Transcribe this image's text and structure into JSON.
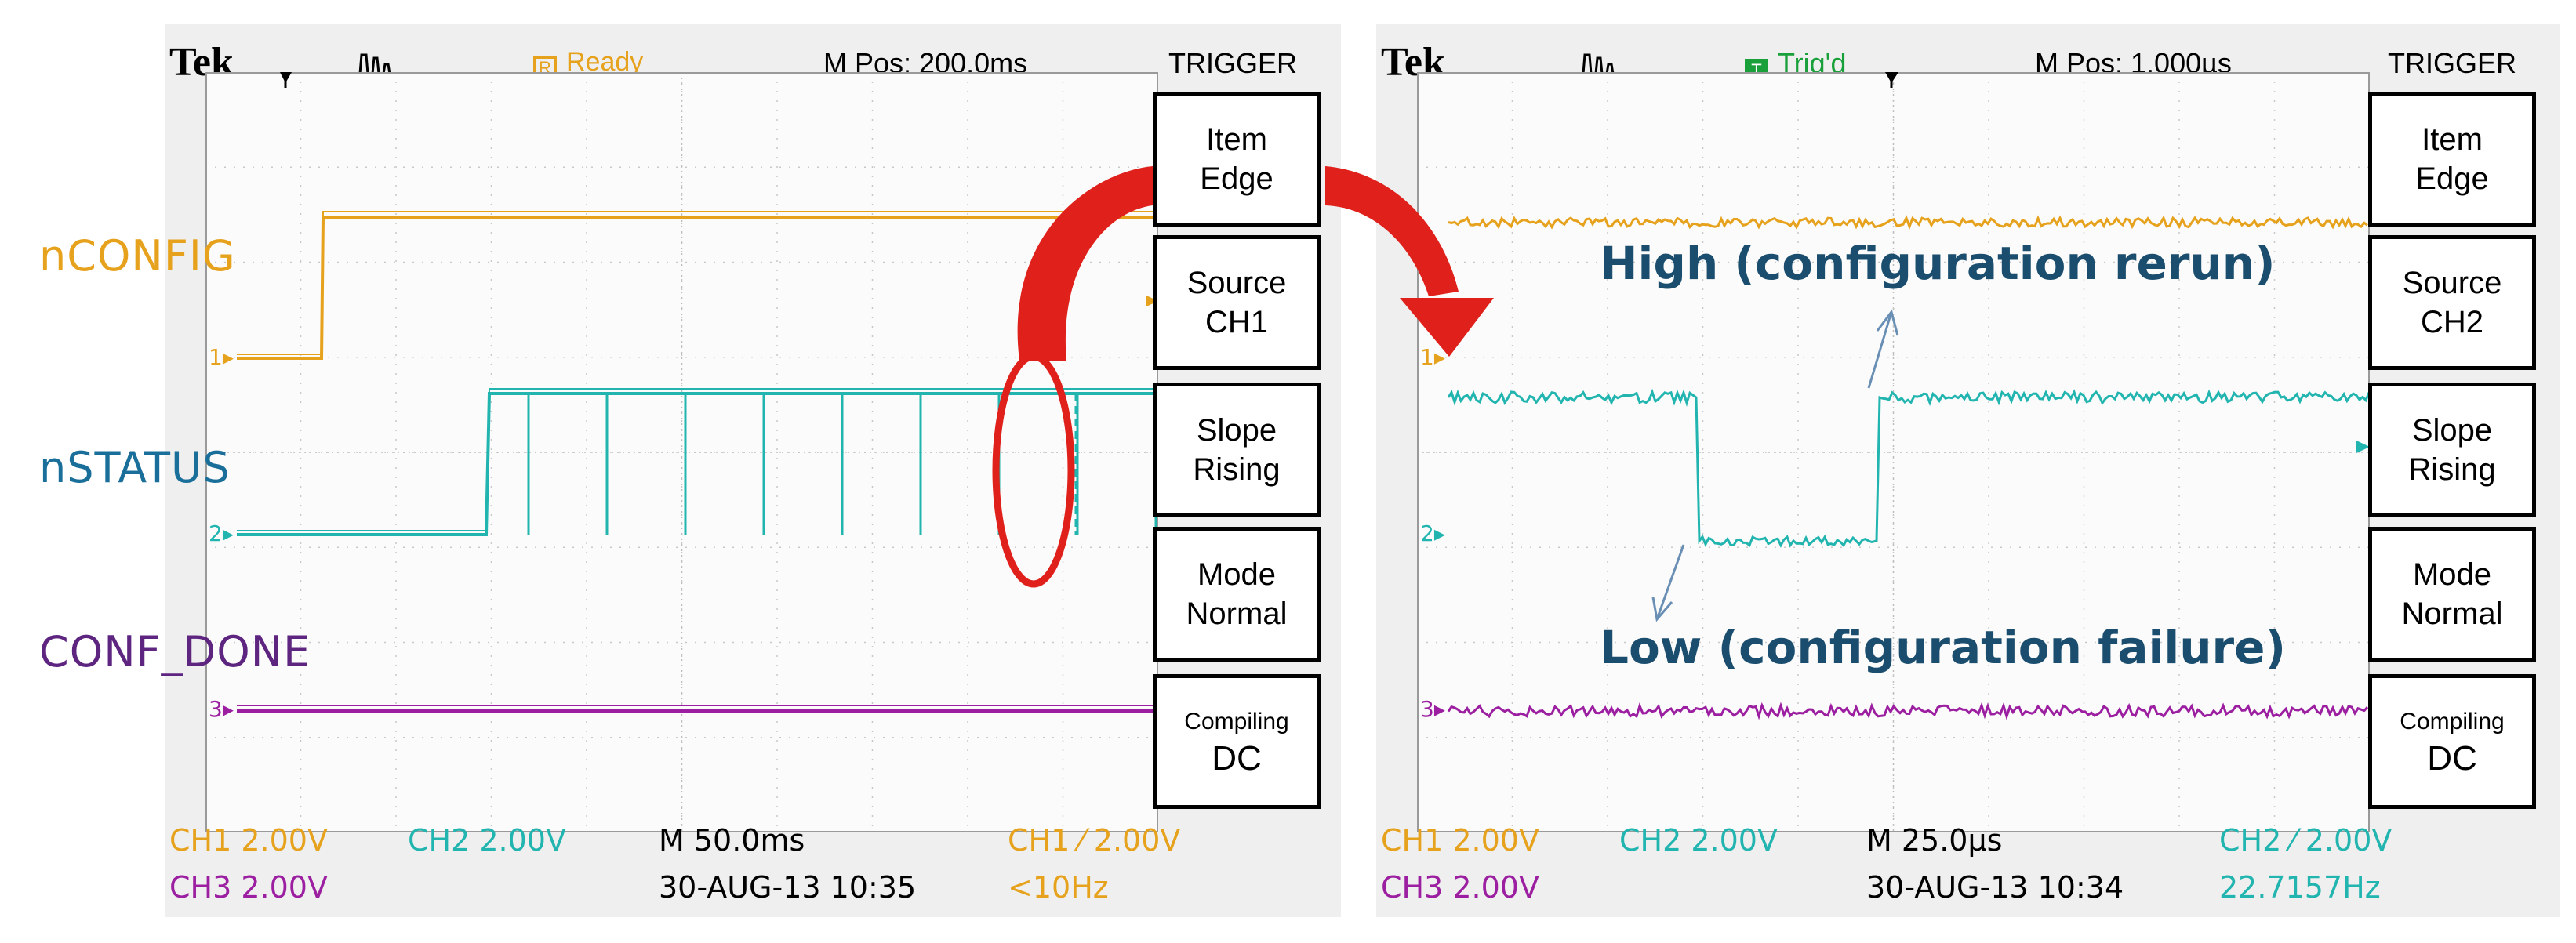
{
  "colors": {
    "ch1": "#e6a21d",
    "ch2": "#22b5b0",
    "ch3": "#9b1fa0",
    "label_ch2": "#1a6f9a",
    "label_ch3": "#5d2480",
    "annotation": "#1b4e6e",
    "callout": "#e0201b"
  },
  "left": {
    "brand": "Tek",
    "status": "Ready",
    "status_symbol": "R",
    "mpos": "M Pos: 200.0ms",
    "trigger_title": "TRIGGER",
    "signal_labels": [
      "nCONFIG",
      "nSTATUS",
      "CONF_DONE"
    ],
    "channel_markers": [
      "1",
      "2",
      "3"
    ],
    "menu": [
      {
        "title": "Item",
        "value": "Edge"
      },
      {
        "title": "Source",
        "value": "CH1"
      },
      {
        "title": "Slope",
        "value": "Rising"
      },
      {
        "title": "Mode",
        "value": "Normal"
      },
      {
        "title": "Compiling",
        "value": "DC"
      }
    ],
    "bottom": {
      "ch1": "CH1  2.00V",
      "ch2": "CH2  2.00V",
      "ch3": "CH3  2.00V",
      "timebase": "M 50.0ms",
      "datetime": "30-AUG-13 10:35",
      "trigger": "CH1 ⁄ 2.00V",
      "freq": "<10Hz"
    }
  },
  "right": {
    "brand": "Tek",
    "status": "Trig'd",
    "status_symbol": "T",
    "mpos": "M Pos: 1.000µs",
    "trigger_title": "TRIGGER",
    "channel_markers": [
      "1",
      "2",
      "3"
    ],
    "menu": [
      {
        "title": "Item",
        "value": "Edge"
      },
      {
        "title": "Source",
        "value": "CH2"
      },
      {
        "title": "Slope",
        "value": "Rising"
      },
      {
        "title": "Mode",
        "value": "Normal"
      },
      {
        "title": "Compiling",
        "value": "DC"
      }
    ],
    "annotations": {
      "high": "High (configuration rerun)",
      "low": "Low (configuration failure)"
    },
    "bottom": {
      "ch1": "CH1  2.00V",
      "ch2": "CH2  2.00V",
      "ch3": "CH3  2.00V",
      "timebase": "M 25.0µs",
      "datetime": "30-AUG-13 10:34",
      "trigger": "CH2 ⁄ 2.00V",
      "freq": "22.7157Hz"
    }
  }
}
